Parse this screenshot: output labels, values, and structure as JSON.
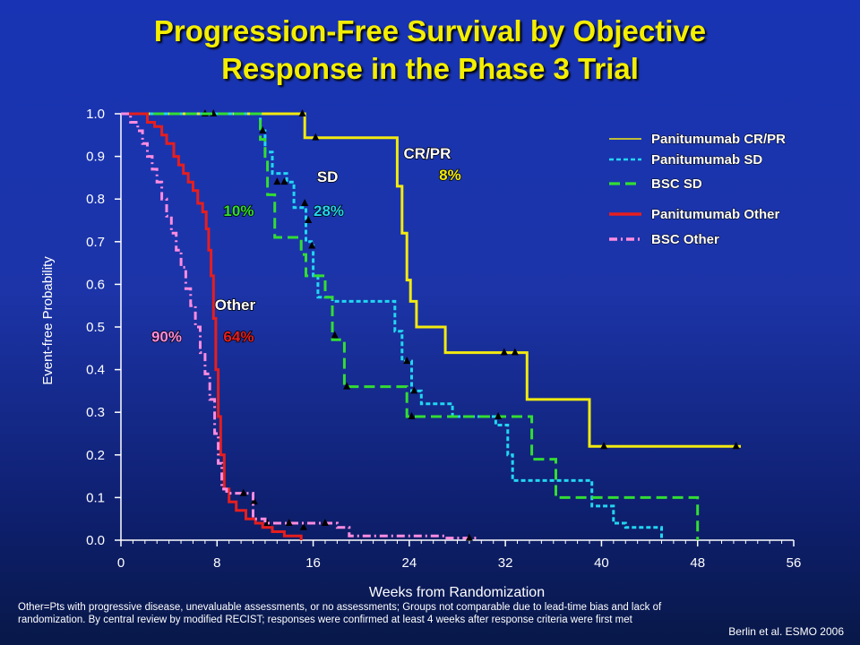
{
  "title": {
    "line1": "Progression-Free Survival by Objective",
    "line2": "Response in the Phase 3 Trial"
  },
  "footnote": "Other=Pts with progressive disease, unevaluable assessments, or no assessments; Groups not comparable due to lead-time bias and lack of randomization. By central review by modified RECIST; responses were confirmed at least 4 weeks after response criteria were first met",
  "citation": "Berlin et al. ESMO 2006",
  "chart_data": {
    "type": "line",
    "step": true,
    "xlabel": "Weeks from Randomization",
    "ylabel": "Event-free Probability",
    "xlim": [
      0,
      56
    ],
    "ylim": [
      0,
      1.0
    ],
    "x_ticks": [
      "0",
      "8",
      "16",
      "24",
      "32",
      "40",
      "48",
      "56"
    ],
    "y_ticks": [
      "0.0",
      "0.1",
      "0.2",
      "0.3",
      "0.4",
      "0.5",
      "0.6",
      "0.7",
      "0.8",
      "0.9",
      "1.0"
    ],
    "grid": false,
    "legend_position": "top-right",
    "series": [
      {
        "name": "Panitumumab CR/PR",
        "color": "#f2ea10",
        "dash": "solid",
        "points": [
          [
            0,
            1.0
          ],
          [
            15.3,
            1.0
          ],
          [
            15.3,
            0.944
          ],
          [
            23.0,
            0.944
          ],
          [
            23.0,
            0.83
          ],
          [
            23.4,
            0.83
          ],
          [
            23.4,
            0.72
          ],
          [
            23.8,
            0.72
          ],
          [
            23.8,
            0.61
          ],
          [
            24.1,
            0.61
          ],
          [
            24.1,
            0.56
          ],
          [
            24.6,
            0.56
          ],
          [
            24.6,
            0.5
          ],
          [
            27.0,
            0.5
          ],
          [
            27.0,
            0.44
          ],
          [
            33.8,
            0.44
          ],
          [
            33.8,
            0.33
          ],
          [
            39.0,
            0.33
          ],
          [
            39.0,
            0.22
          ],
          [
            51.6,
            0.22
          ]
        ],
        "censored": [
          [
            15.1,
            1.0
          ],
          [
            16.2,
            0.944
          ],
          [
            31.9,
            0.44
          ],
          [
            32.8,
            0.44
          ],
          [
            40.2,
            0.22
          ],
          [
            51.2,
            0.22
          ]
        ]
      },
      {
        "name": "Panitumumab SD",
        "color": "#22d6f2",
        "dash": "short",
        "points": [
          [
            0,
            1.0
          ],
          [
            11.6,
            1.0
          ],
          [
            11.6,
            0.96
          ],
          [
            12.0,
            0.96
          ],
          [
            12.0,
            0.91
          ],
          [
            12.6,
            0.91
          ],
          [
            12.6,
            0.86
          ],
          [
            13.8,
            0.86
          ],
          [
            13.8,
            0.84
          ],
          [
            14.4,
            0.84
          ],
          [
            14.4,
            0.78
          ],
          [
            15.4,
            0.78
          ],
          [
            15.4,
            0.7
          ],
          [
            16.0,
            0.7
          ],
          [
            16.0,
            0.62
          ],
          [
            16.4,
            0.62
          ],
          [
            16.4,
            0.57
          ],
          [
            17.6,
            0.57
          ],
          [
            17.6,
            0.56
          ],
          [
            22.8,
            0.56
          ],
          [
            22.8,
            0.49
          ],
          [
            23.4,
            0.49
          ],
          [
            23.4,
            0.42
          ],
          [
            24.2,
            0.42
          ],
          [
            24.2,
            0.35
          ],
          [
            25.0,
            0.35
          ],
          [
            25.0,
            0.32
          ],
          [
            27.6,
            0.32
          ],
          [
            27.6,
            0.29
          ],
          [
            31.2,
            0.29
          ],
          [
            31.2,
            0.27
          ],
          [
            32.2,
            0.27
          ],
          [
            32.2,
            0.2
          ],
          [
            32.6,
            0.2
          ],
          [
            32.6,
            0.14
          ],
          [
            39.2,
            0.14
          ],
          [
            39.2,
            0.08
          ],
          [
            41.0,
            0.08
          ],
          [
            41.0,
            0.04
          ],
          [
            42.0,
            0.04
          ],
          [
            42.0,
            0.03
          ],
          [
            45.0,
            0.03
          ],
          [
            45.0,
            0.0
          ]
        ],
        "censored": [
          [
            7.0,
            1.0
          ],
          [
            7.7,
            1.0
          ],
          [
            13.0,
            0.84
          ],
          [
            13.6,
            0.84
          ],
          [
            15.3,
            0.79
          ],
          [
            15.9,
            0.69
          ],
          [
            23.8,
            0.42
          ],
          [
            24.4,
            0.35
          ]
        ]
      },
      {
        "name": "BSC SD",
        "color": "#33dd33",
        "dash": "long",
        "points": [
          [
            0,
            1.0
          ],
          [
            11.6,
            1.0
          ],
          [
            11.6,
            0.94
          ],
          [
            12.0,
            0.94
          ],
          [
            12.0,
            0.9
          ],
          [
            12.2,
            0.9
          ],
          [
            12.2,
            0.81
          ],
          [
            12.8,
            0.81
          ],
          [
            12.8,
            0.71
          ],
          [
            15.0,
            0.71
          ],
          [
            15.0,
            0.67
          ],
          [
            15.4,
            0.67
          ],
          [
            15.4,
            0.62
          ],
          [
            17.0,
            0.62
          ],
          [
            17.0,
            0.57
          ],
          [
            17.6,
            0.57
          ],
          [
            17.6,
            0.47
          ],
          [
            18.6,
            0.47
          ],
          [
            18.6,
            0.36
          ],
          [
            23.8,
            0.36
          ],
          [
            23.8,
            0.29
          ],
          [
            34.2,
            0.29
          ],
          [
            34.2,
            0.19
          ],
          [
            36.2,
            0.19
          ],
          [
            36.2,
            0.1
          ],
          [
            48.0,
            0.1
          ],
          [
            48.0,
            0.0
          ]
        ],
        "censored": [
          [
            11.8,
            0.96
          ],
          [
            15.6,
            0.75
          ],
          [
            17.8,
            0.48
          ],
          [
            18.8,
            0.36
          ],
          [
            24.2,
            0.29
          ],
          [
            31.4,
            0.29
          ]
        ]
      },
      {
        "name": "Panitumumab Other",
        "color": "#e61e1e",
        "dash": "solid",
        "points": [
          [
            0,
            1.0
          ],
          [
            2.2,
            1.0
          ],
          [
            2.2,
            0.98
          ],
          [
            2.8,
            0.98
          ],
          [
            2.8,
            0.97
          ],
          [
            3.4,
            0.97
          ],
          [
            3.4,
            0.95
          ],
          [
            3.8,
            0.95
          ],
          [
            3.8,
            0.93
          ],
          [
            4.4,
            0.93
          ],
          [
            4.4,
            0.9
          ],
          [
            4.8,
            0.9
          ],
          [
            4.8,
            0.88
          ],
          [
            5.2,
            0.88
          ],
          [
            5.2,
            0.86
          ],
          [
            5.6,
            0.86
          ],
          [
            5.6,
            0.84
          ],
          [
            6.0,
            0.84
          ],
          [
            6.0,
            0.82
          ],
          [
            6.4,
            0.82
          ],
          [
            6.4,
            0.79
          ],
          [
            6.8,
            0.79
          ],
          [
            6.8,
            0.77
          ],
          [
            7.1,
            0.77
          ],
          [
            7.1,
            0.73
          ],
          [
            7.3,
            0.73
          ],
          [
            7.3,
            0.68
          ],
          [
            7.5,
            0.68
          ],
          [
            7.5,
            0.62
          ],
          [
            7.7,
            0.62
          ],
          [
            7.7,
            0.52
          ],
          [
            7.9,
            0.52
          ],
          [
            7.9,
            0.4
          ],
          [
            8.1,
            0.4
          ],
          [
            8.1,
            0.29
          ],
          [
            8.3,
            0.29
          ],
          [
            8.3,
            0.2
          ],
          [
            8.6,
            0.2
          ],
          [
            8.6,
            0.12
          ],
          [
            9.0,
            0.12
          ],
          [
            9.0,
            0.09
          ],
          [
            9.6,
            0.09
          ],
          [
            9.6,
            0.07
          ],
          [
            10.4,
            0.07
          ],
          [
            10.4,
            0.05
          ],
          [
            11.2,
            0.05
          ],
          [
            11.2,
            0.04
          ],
          [
            11.8,
            0.04
          ],
          [
            11.8,
            0.03
          ],
          [
            12.6,
            0.03
          ],
          [
            12.6,
            0.02
          ],
          [
            13.6,
            0.02
          ],
          [
            13.6,
            0.01
          ],
          [
            15.0,
            0.01
          ],
          [
            15.0,
            0.0
          ]
        ],
        "censored": [
          [
            11.1,
            0.09
          ],
          [
            12.2,
            0.04
          ],
          [
            15.2,
            0.03
          ]
        ]
      },
      {
        "name": "BSC Other",
        "color": "#ff8ce0",
        "dash": "dashdot",
        "points": [
          [
            0,
            1.0
          ],
          [
            0.8,
            1.0
          ],
          [
            0.8,
            0.98
          ],
          [
            1.4,
            0.98
          ],
          [
            1.4,
            0.96
          ],
          [
            1.8,
            0.96
          ],
          [
            1.8,
            0.93
          ],
          [
            2.2,
            0.93
          ],
          [
            2.2,
            0.9
          ],
          [
            2.6,
            0.9
          ],
          [
            2.6,
            0.87
          ],
          [
            3.0,
            0.87
          ],
          [
            3.0,
            0.84
          ],
          [
            3.4,
            0.84
          ],
          [
            3.4,
            0.8
          ],
          [
            3.8,
            0.8
          ],
          [
            3.8,
            0.76
          ],
          [
            4.2,
            0.76
          ],
          [
            4.2,
            0.72
          ],
          [
            4.6,
            0.72
          ],
          [
            4.6,
            0.68
          ],
          [
            5.0,
            0.68
          ],
          [
            5.0,
            0.64
          ],
          [
            5.4,
            0.64
          ],
          [
            5.4,
            0.59
          ],
          [
            5.8,
            0.59
          ],
          [
            5.8,
            0.55
          ],
          [
            6.2,
            0.55
          ],
          [
            6.2,
            0.5
          ],
          [
            6.6,
            0.5
          ],
          [
            6.6,
            0.44
          ],
          [
            7.0,
            0.44
          ],
          [
            7.0,
            0.39
          ],
          [
            7.4,
            0.39
          ],
          [
            7.4,
            0.33
          ],
          [
            7.8,
            0.33
          ],
          [
            7.8,
            0.25
          ],
          [
            8.1,
            0.25
          ],
          [
            8.1,
            0.18
          ],
          [
            8.4,
            0.18
          ],
          [
            8.4,
            0.12
          ],
          [
            8.8,
            0.12
          ],
          [
            8.8,
            0.11
          ],
          [
            11.0,
            0.11
          ],
          [
            11.0,
            0.05
          ],
          [
            12.0,
            0.05
          ],
          [
            12.0,
            0.04
          ],
          [
            18.0,
            0.04
          ],
          [
            18.0,
            0.03
          ],
          [
            19.0,
            0.03
          ],
          [
            19.0,
            0.01
          ],
          [
            27.0,
            0.01
          ],
          [
            27.0,
            0.005
          ],
          [
            29.6,
            0.005
          ]
        ],
        "censored": [
          [
            10.2,
            0.11
          ],
          [
            14.0,
            0.04
          ],
          [
            17.0,
            0.04
          ],
          [
            29.0,
            0.005
          ]
        ]
      }
    ],
    "annotations": [
      {
        "text": "CR/PR",
        "x": 25.5,
        "y": 0.895,
        "color": "#ffffff"
      },
      {
        "text": "8%",
        "x": 27.4,
        "y": 0.845,
        "color": "#f2ea10"
      },
      {
        "text": "SD",
        "x": 17.2,
        "y": 0.84,
        "color": "#ffffff"
      },
      {
        "text": "10%",
        "x": 9.8,
        "y": 0.76,
        "color": "#33dd33"
      },
      {
        "text": "28%",
        "x": 17.3,
        "y": 0.76,
        "color": "#22d6f2"
      },
      {
        "text": "Other",
        "x": 9.5,
        "y": 0.54,
        "color": "#ffffff"
      },
      {
        "text": "90%",
        "x": 3.8,
        "y": 0.465,
        "color": "#ff8ce0"
      },
      {
        "text": "64%",
        "x": 9.8,
        "y": 0.465,
        "color": "#e61e1e"
      }
    ]
  }
}
